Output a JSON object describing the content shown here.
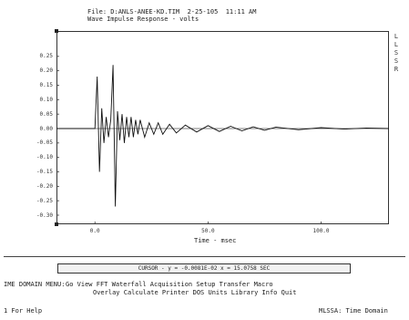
{
  "header": {
    "file_line": "File: D:ANLS-ANEE-KD.TIM  2-25-105  11:11 AM",
    "plot_title": "Wave Impulse Response - volts"
  },
  "chart_data": {
    "type": "line",
    "y_ticks": [
      "0.25",
      "0.20",
      "0.15",
      "0.10",
      "0.05",
      "0.00",
      "-0.05",
      "-0.10",
      "-0.15",
      "-0.20",
      "-0.25",
      "-0.30"
    ],
    "ylim": [
      -0.3,
      0.3
    ],
    "x_ticks": [
      {
        "label": "0.0",
        "value": 0
      },
      {
        "label": "50.0",
        "value": 50
      },
      {
        "label": "100.0",
        "value": 100
      }
    ],
    "xlim": [
      -17,
      130
    ],
    "xlabel": "Time - msec",
    "ylabel": "",
    "grid": false,
    "baseline": 0.0,
    "series": [
      {
        "x": [
          -17,
          0,
          1,
          2,
          3,
          4,
          5,
          6,
          7,
          8,
          9,
          10,
          11,
          12,
          13,
          14,
          15,
          16,
          17,
          18,
          19,
          20,
          22,
          24,
          26,
          28,
          30,
          33,
          36,
          40,
          45,
          50,
          55,
          60,
          65,
          70,
          75,
          80,
          90,
          100,
          110,
          120,
          130
        ],
        "values": [
          0.0,
          0.0,
          0.18,
          -0.15,
          0.07,
          -0.05,
          0.04,
          -0.03,
          0.03,
          0.22,
          -0.27,
          0.06,
          -0.04,
          0.05,
          -0.05,
          0.04,
          -0.03,
          0.04,
          -0.03,
          0.03,
          -0.02,
          0.03,
          -0.03,
          0.02,
          -0.02,
          0.02,
          -0.02,
          0.015,
          -0.015,
          0.012,
          -0.012,
          0.01,
          -0.01,
          0.008,
          -0.008,
          0.006,
          -0.006,
          0.005,
          -0.004,
          0.003,
          -0.002,
          0.002,
          0.0
        ]
      }
    ]
  },
  "right_letters": [
    "L",
    "L",
    "S",
    "S",
    "R"
  ],
  "cursor_readout": "CURSOR - y = -0.0081E-02  x = 15.0758 SEC",
  "menu": {
    "label": "IME DOMAIN MENU:",
    "row1": [
      "Go",
      "View",
      "FFT",
      "Waterfall",
      "Acquisition",
      "Setup",
      "Transfer",
      "Macro"
    ],
    "row2": [
      "Overlay",
      "Calculate",
      "Printer",
      "DOS",
      "Units",
      "Library",
      "Info",
      "Quit"
    ]
  },
  "status": {
    "help": "1 For Help",
    "mode": "MLSSA: Time Domain"
  }
}
